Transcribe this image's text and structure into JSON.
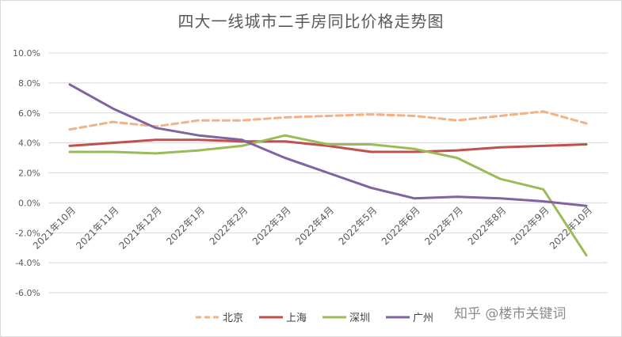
{
  "title": "四大一线城市二手房同比价格走势图",
  "watermark": "知乎 @楼市关键词",
  "chart_data": {
    "type": "line",
    "title": "四大一线城市二手房同比价格走势图",
    "categories": [
      "2021年10月",
      "2021年11月",
      "2021年12月",
      "2022年1月",
      "2022年2月",
      "2022年3月",
      "2022年4月",
      "2022年5月",
      "2022年6月",
      "2022年7月",
      "2022年8月",
      "2022年9月",
      "2022年10月"
    ],
    "y_tick_labels": [
      "10.0%",
      "8.0%",
      "6.0%",
      "4.0%",
      "2.0%",
      "0.0%",
      "-2.0%",
      "-4.0%",
      "-6.0%"
    ],
    "ylim": [
      -6,
      10
    ],
    "y_step": 2,
    "grid": true,
    "legend_position": "bottom",
    "series": [
      {
        "name": "北京",
        "color": "#f4b183",
        "style": "dashed",
        "values": [
          4.9,
          5.4,
          5.1,
          5.5,
          5.5,
          5.7,
          5.8,
          5.9,
          5.8,
          5.5,
          5.8,
          6.1,
          5.3
        ]
      },
      {
        "name": "上海",
        "color": "#c0504d",
        "style": "solid",
        "values": [
          3.8,
          4.0,
          4.2,
          4.2,
          4.1,
          4.1,
          3.8,
          3.4,
          3.4,
          3.5,
          3.7,
          3.8,
          3.9
        ]
      },
      {
        "name": "深圳",
        "color": "#9bbb59",
        "style": "solid",
        "values": [
          3.4,
          3.4,
          3.3,
          3.5,
          3.8,
          4.5,
          3.9,
          3.9,
          3.6,
          3.0,
          1.6,
          0.9,
          -3.5
        ]
      },
      {
        "name": "广州",
        "color": "#8064a2",
        "style": "solid",
        "values": [
          7.9,
          6.3,
          5.0,
          4.5,
          4.2,
          3.0,
          2.0,
          1.0,
          0.3,
          0.4,
          0.3,
          0.1,
          -0.2
        ]
      }
    ]
  }
}
